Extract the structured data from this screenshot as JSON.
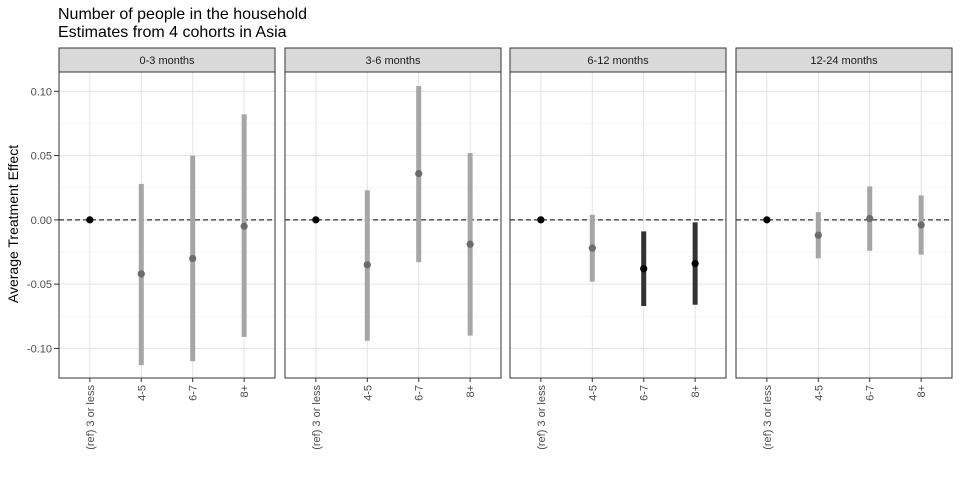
{
  "chart_data": {
    "type": "faceted-pointrange",
    "title": "Number of people in the household",
    "subtitle": "Estimates from 4 cohorts in Asia",
    "ylabel": "Average Treatment Effect",
    "xlabel": "",
    "categories": [
      "(ref) 3 or less",
      "4-5",
      "6-7",
      "8+"
    ],
    "ylim": [
      -0.123,
      0.115
    ],
    "yticks": [
      0.1,
      0.05,
      0.0,
      -0.05,
      -0.1
    ],
    "ytick_labels": [
      "0.10",
      "0.05",
      "0.00",
      "-0.05",
      "-0.10"
    ],
    "reference_line": 0,
    "grid": true,
    "colors": {
      "significant": "#333333",
      "not_significant": "#a6a6a6",
      "reference": "#000000",
      "strip_fill": "#d9d9d9"
    },
    "panels": [
      {
        "label": "0-3 months",
        "estimates": [
          0.0,
          -0.042,
          -0.03,
          -0.005
        ],
        "lower": [
          null,
          -0.113,
          -0.11,
          -0.091
        ],
        "upper": [
          null,
          0.028,
          0.05,
          0.082
        ],
        "significant": [
          false,
          false,
          false,
          false
        ]
      },
      {
        "label": "3-6 months",
        "estimates": [
          0.0,
          -0.035,
          0.036,
          -0.019
        ],
        "lower": [
          null,
          -0.094,
          -0.033,
          -0.09
        ],
        "upper": [
          null,
          0.023,
          0.104,
          0.052
        ],
        "significant": [
          false,
          false,
          false,
          false
        ]
      },
      {
        "label": "6-12 months",
        "estimates": [
          0.0,
          -0.022,
          -0.038,
          -0.034
        ],
        "lower": [
          null,
          -0.048,
          -0.067,
          -0.066
        ],
        "upper": [
          null,
          0.004,
          -0.009,
          -0.002
        ],
        "significant": [
          false,
          false,
          true,
          true
        ]
      },
      {
        "label": "12-24 months",
        "estimates": [
          0.0,
          -0.012,
          0.001,
          -0.004
        ],
        "lower": [
          null,
          -0.03,
          -0.024,
          -0.027
        ],
        "upper": [
          null,
          0.006,
          0.026,
          0.019
        ],
        "significant": [
          false,
          false,
          false,
          false
        ]
      }
    ]
  }
}
